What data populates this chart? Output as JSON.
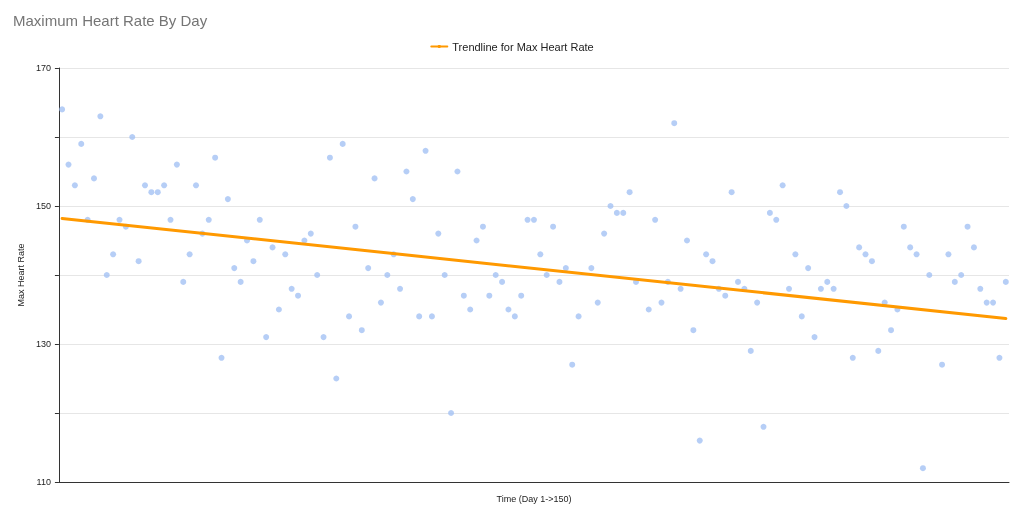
{
  "chart_data": {
    "type": "scatter",
    "title": "Maximum Heart Rate By Day",
    "xlabel": "Time (Day 1->150)",
    "ylabel": "Max Heart Rate",
    "categories": [
      null,
      null,
      null,
      null,
      null,
      null,
      null,
      null,
      null,
      null,
      null,
      null,
      null,
      null,
      null,
      null,
      null,
      null,
      null,
      null,
      null,
      null,
      null,
      null,
      null,
      null,
      null,
      null,
      null,
      null,
      null,
      null,
      null,
      null,
      null,
      null,
      null,
      null,
      null,
      null,
      null,
      null,
      null,
      null,
      null,
      null,
      null,
      null,
      null,
      null,
      null,
      null,
      null,
      null,
      null,
      null,
      null,
      null,
      null,
      null,
      null,
      null,
      null,
      null,
      null,
      null,
      null,
      null,
      null,
      null,
      null,
      null,
      null,
      null,
      null,
      null,
      null,
      null,
      null,
      null,
      null,
      null,
      null,
      null,
      null,
      null,
      null,
      null,
      null,
      null,
      null,
      null,
      null,
      null,
      null,
      null,
      null,
      null,
      null,
      null,
      null,
      null,
      null,
      null,
      null,
      null,
      null,
      null,
      null,
      null,
      null,
      null,
      null,
      null,
      null,
      null,
      null,
      null,
      null,
      null,
      null,
      null,
      null,
      null,
      null,
      null,
      null,
      null,
      null,
      null,
      null,
      null,
      null,
      null,
      null,
      null,
      null,
      null,
      null,
      null,
      null,
      null,
      null,
      null,
      null,
      null,
      null,
      null,
      null
    ],
    "series": [
      {
        "color": "#a4c2f4",
        "marker": "circle",
        "values": [
          164,
          156,
          153,
          159,
          148,
          154,
          163,
          140,
          143,
          148,
          147,
          160,
          142,
          153,
          152,
          152,
          153,
          148,
          156,
          139,
          143,
          153,
          146,
          148,
          157,
          128,
          151,
          141,
          139,
          145,
          142,
          148,
          131,
          144,
          135,
          143,
          138,
          137,
          145,
          146,
          140,
          131,
          157,
          125,
          159,
          134,
          147,
          132,
          141,
          154,
          136,
          140,
          143,
          138,
          155,
          151,
          134,
          158,
          134,
          146,
          140,
          120,
          155,
          137,
          135,
          145,
          147,
          137,
          140,
          139,
          135,
          134,
          137,
          148,
          148,
          143,
          140,
          147,
          139,
          141,
          127,
          134,
          null,
          141,
          136,
          146,
          150,
          149,
          149,
          152,
          139,
          null,
          135,
          148,
          136,
          139,
          162,
          138,
          145,
          132,
          116,
          143,
          142,
          138,
          137,
          152,
          139,
          138,
          129,
          136,
          118,
          149,
          148,
          153,
          138,
          143,
          134,
          141,
          131,
          138,
          139,
          138,
          152,
          150,
          128,
          144,
          143,
          142,
          129,
          136,
          132,
          135,
          147,
          144,
          143,
          112,
          140,
          null,
          127,
          143,
          139,
          140,
          147,
          144,
          138,
          136,
          136,
          128,
          139
        ]
      },
      {
        "type": "line",
        "name": "Trendline for Max Heart Rate",
        "color": "#ff9900",
        "marker": "none",
        "line_style": "solid",
        "values": [
          148.2,
          null,
          null,
          null,
          null,
          null,
          null,
          null,
          null,
          null,
          null,
          null,
          null,
          null,
          null,
          null,
          null,
          null,
          null,
          null,
          null,
          null,
          null,
          null,
          null,
          null,
          null,
          null,
          null,
          null,
          null,
          null,
          null,
          null,
          null,
          null,
          null,
          null,
          null,
          null,
          null,
          null,
          null,
          null,
          null,
          null,
          null,
          null,
          null,
          null,
          null,
          null,
          null,
          null,
          null,
          null,
          null,
          null,
          null,
          null,
          null,
          null,
          null,
          null,
          null,
          null,
          null,
          null,
          null,
          null,
          null,
          null,
          null,
          null,
          null,
          null,
          null,
          null,
          null,
          null,
          null,
          null,
          null,
          null,
          null,
          null,
          null,
          null,
          null,
          null,
          null,
          null,
          null,
          null,
          null,
          null,
          null,
          null,
          null,
          null,
          null,
          null,
          null,
          null,
          null,
          null,
          null,
          null,
          null,
          null,
          null,
          null,
          null,
          null,
          null,
          null,
          null,
          null,
          null,
          null,
          null,
          null,
          null,
          null,
          null,
          null,
          null,
          null,
          null,
          null,
          null,
          null,
          null,
          null,
          null,
          null,
          null,
          null,
          null,
          null,
          null,
          null,
          null,
          null,
          null,
          null,
          null,
          null,
          133.7
        ]
      }
    ],
    "ylim": [
      110,
      170
    ],
    "yticks": [
      110,
      {
        "value": 120,
        "label": null
      },
      130,
      {
        "value": 140,
        "label": null
      },
      150,
      {
        "value": 160,
        "label": null
      },
      170
    ],
    "tick_labels": "y",
    "grid": "y",
    "legend": "top"
  }
}
